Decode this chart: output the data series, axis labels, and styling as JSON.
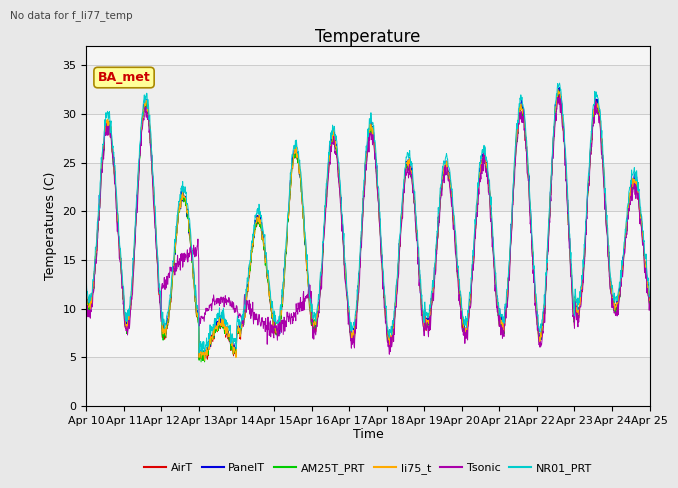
{
  "title": "Temperature",
  "subtitle": "No data for f_li77_temp",
  "xlabel": "Time",
  "ylabel": "Temperatures (C)",
  "ylim": [
    0,
    37
  ],
  "yticks": [
    0,
    5,
    10,
    15,
    20,
    25,
    30,
    35
  ],
  "background_color": "#e8e8e8",
  "plot_background": "#f5f5f5",
  "grid_band_color": "#e0e0e0",
  "series": [
    "AirT",
    "PanelT",
    "AM25T_PRT",
    "li75_t",
    "Tsonic",
    "NR01_PRT"
  ],
  "colors": [
    "#dd0000",
    "#0000dd",
    "#00cc00",
    "#ffaa00",
    "#aa00aa",
    "#00cccc"
  ],
  "legend_label": "BA_met",
  "legend_box_facecolor": "#ffff99",
  "legend_box_edgecolor": "#aa8800",
  "x_tick_labels": [
    "Apr 10",
    "Apr 11",
    "Apr 12",
    "Apr 13",
    "Apr 14",
    "Apr 15",
    "Apr 16",
    "Apr 17",
    "Apr 18",
    "Apr 19",
    "Apr 20",
    "Apr 21",
    "Apr 22",
    "Apr 23",
    "Apr 24",
    "Apr 25"
  ],
  "grid_color": "#cccccc",
  "title_fontsize": 12,
  "label_fontsize": 9,
  "tick_fontsize": 8
}
